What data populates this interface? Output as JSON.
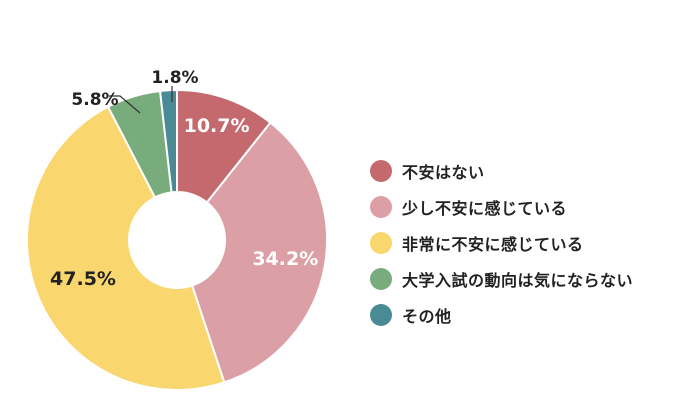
{
  "chart_data": {
    "type": "pie",
    "donut": true,
    "title": "",
    "categories": [
      "不安はない",
      "少し不安に感じている",
      "非常に不安に感じている",
      "大学入試の動向は気にならない",
      "その他"
    ],
    "values": [
      10.7,
      34.2,
      47.5,
      5.8,
      1.8
    ],
    "value_labels": [
      "10.7%",
      "34.2%",
      "47.5%",
      "5.8%",
      "1.8%"
    ],
    "colors": [
      "#c4696e",
      "#dc9fa5",
      "#fad66e",
      "#79ac7d",
      "#4a8a95"
    ],
    "label_colors": [
      "#ffffff",
      "#ffffff",
      "#222222",
      "#222222",
      "#222222"
    ],
    "start_angle_deg": 0,
    "direction": "clockwise",
    "legend_position": "right"
  }
}
